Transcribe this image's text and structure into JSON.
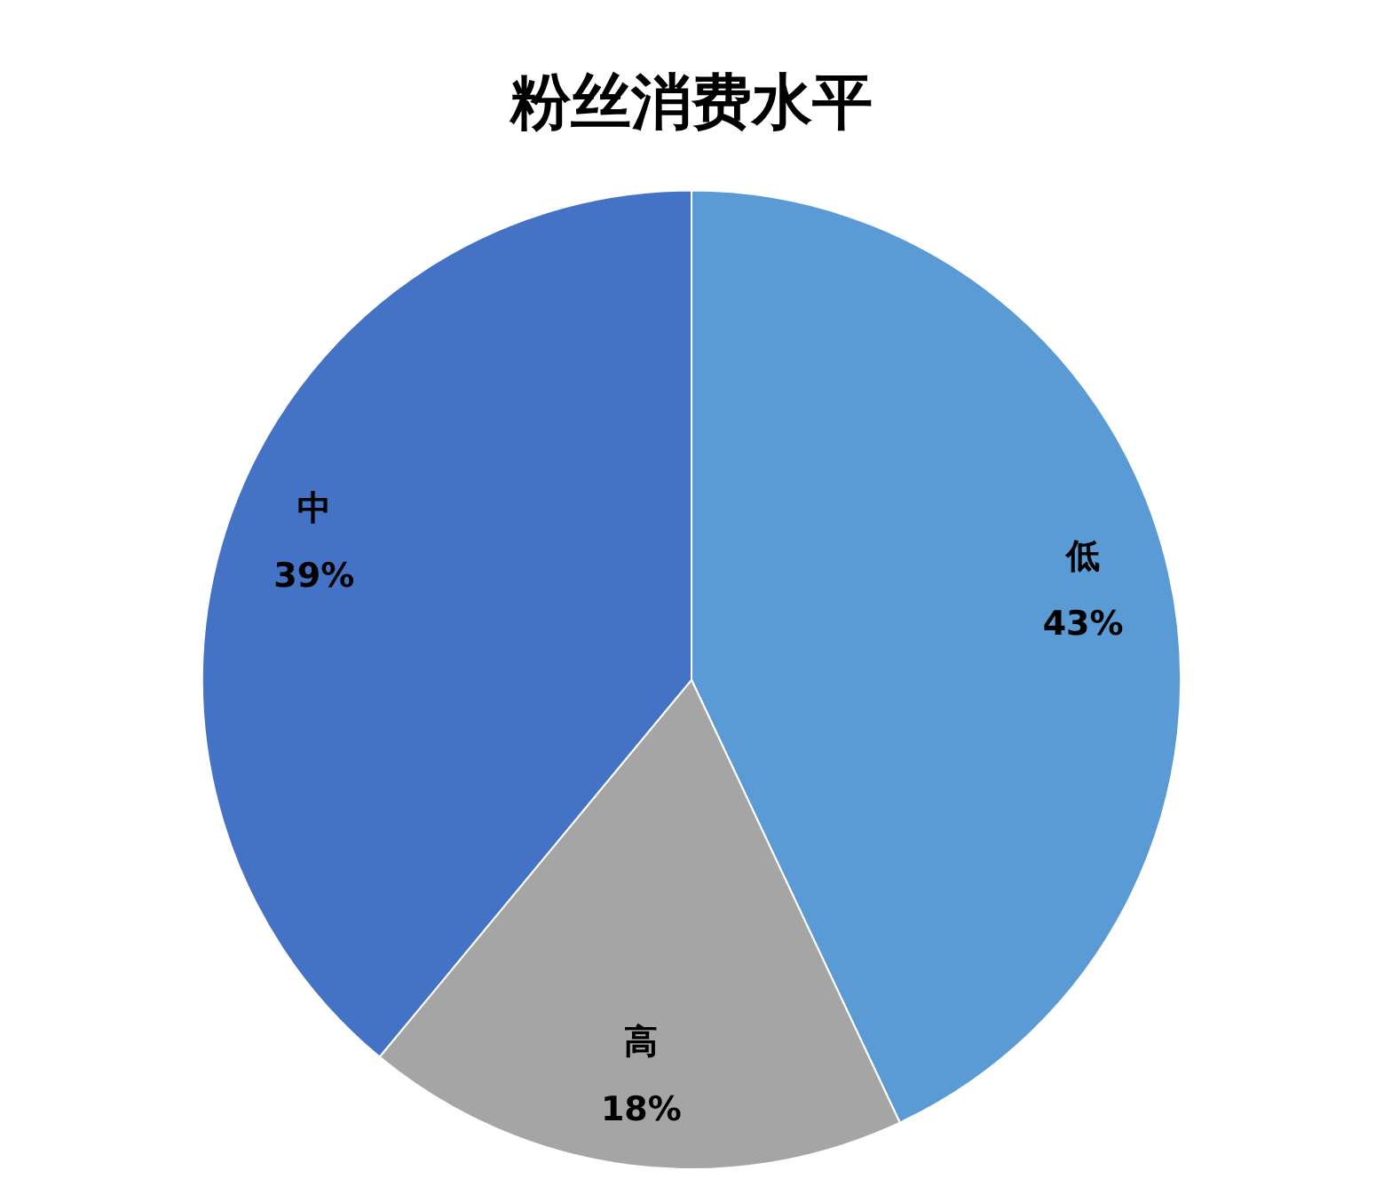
{
  "chart_data": {
    "type": "pie",
    "title": "粉丝消费水平",
    "categories": [
      "低",
      "高",
      "中"
    ],
    "values": [
      43,
      18,
      39
    ],
    "value_labels": [
      "43%",
      "18%",
      "39%"
    ],
    "colors": [
      "#5b9bd5",
      "#a5a5a5",
      "#4472c4"
    ],
    "legend": false
  }
}
